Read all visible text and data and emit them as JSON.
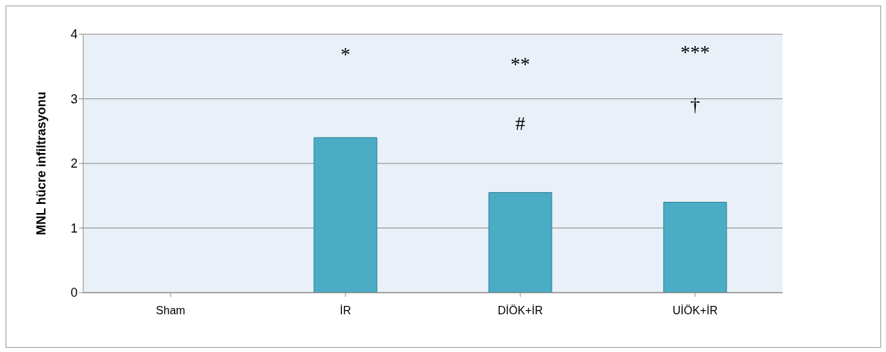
{
  "chart_data": {
    "type": "bar",
    "ylabel": "MNL hücre infiltrasyonu",
    "categories": [
      "Sham",
      "İR",
      "DİÖK+İR",
      "UİÖK+İR"
    ],
    "values": [
      0,
      2.4,
      1.55,
      1.4
    ],
    "color": "#4bacc6",
    "ylim": [
      0,
      4
    ],
    "yticks": [
      0,
      1,
      2,
      3,
      4
    ],
    "grid": "y",
    "annotations": [
      "*",
      "**",
      "#",
      "***",
      "†"
    ]
  }
}
